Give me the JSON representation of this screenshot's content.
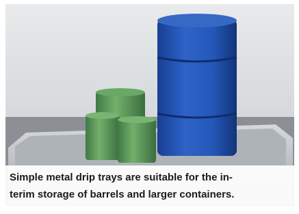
{
  "caption": {
    "lines": [
      "Simple metal drip trays are suitable for the in-",
      "terim storage of barrels and larger containers."
    ]
  }
}
